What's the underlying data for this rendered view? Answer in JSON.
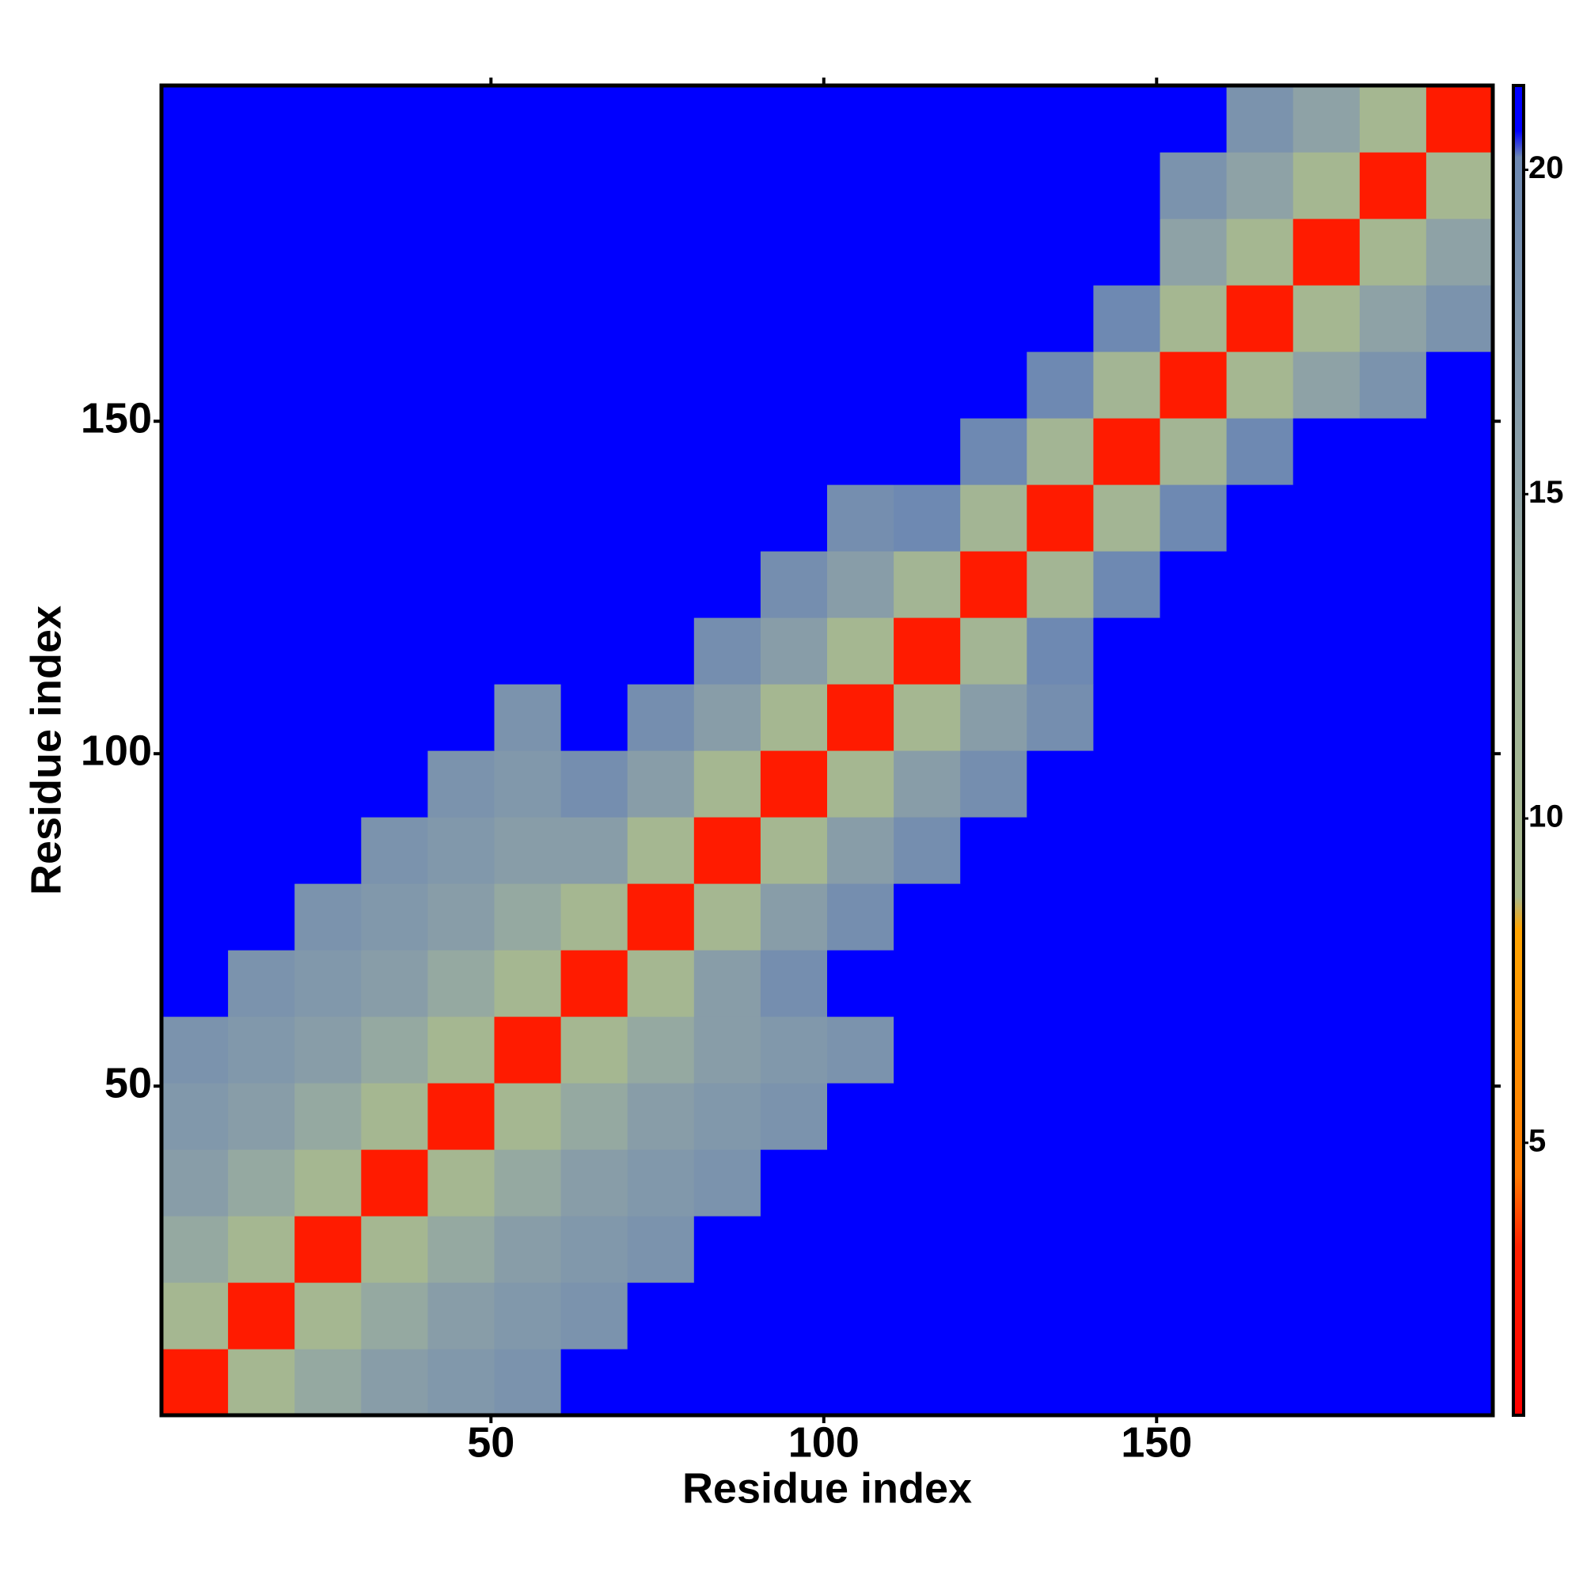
{
  "chart_data": {
    "type": "heatmap",
    "x_label": "Residue index",
    "y_label": "Residue index",
    "bins": [
      0.5,
      10.5,
      20.5,
      30.5,
      40.5,
      50.5,
      60.5,
      70.5,
      80.5,
      90.5,
      100.5,
      110.5,
      120.5,
      130.5,
      140.5,
      150.5,
      160.5,
      170.5,
      180.5,
      190.5,
      200.5
    ],
    "xlim": [
      0.5,
      200.5
    ],
    "ylim": [
      0.5,
      200.5
    ],
    "xticks": [
      50,
      100,
      150
    ],
    "yticks": [
      50,
      100,
      150
    ],
    "z": [
      [
        3,
        10,
        14,
        16,
        17,
        18,
        21,
        21,
        21,
        21,
        21,
        21,
        21,
        21,
        21,
        21,
        21,
        21,
        21,
        21
      ],
      [
        10,
        3,
        10,
        14,
        16,
        17,
        18,
        21,
        21,
        21,
        21,
        21,
        21,
        21,
        21,
        21,
        21,
        21,
        21,
        21
      ],
      [
        14,
        10,
        3,
        10,
        14,
        16,
        17,
        18,
        21,
        21,
        21,
        21,
        21,
        21,
        21,
        21,
        21,
        21,
        21,
        21
      ],
      [
        16,
        14,
        10,
        3,
        10,
        14,
        16,
        17,
        18,
        21,
        21,
        21,
        21,
        21,
        21,
        21,
        21,
        21,
        21,
        21
      ],
      [
        17,
        16,
        14,
        10,
        3,
        10,
        14,
        16,
        17,
        18,
        21,
        21,
        21,
        21,
        21,
        21,
        21,
        21,
        21,
        21
      ],
      [
        18,
        17,
        16,
        14,
        10,
        3,
        10,
        14,
        16,
        17,
        18,
        21,
        21,
        21,
        21,
        21,
        21,
        21,
        21,
        21
      ],
      [
        21,
        18,
        17,
        16,
        14,
        10,
        3,
        10,
        16,
        19,
        21,
        21,
        21,
        21,
        21,
        21,
        21,
        21,
        21,
        21
      ],
      [
        21,
        21,
        18,
        17,
        16,
        14,
        10,
        3,
        10,
        16,
        19,
        21,
        21,
        21,
        21,
        21,
        21,
        21,
        21,
        21
      ],
      [
        21,
        21,
        21,
        18,
        17,
        16,
        16,
        10,
        3,
        10,
        16,
        19,
        21,
        21,
        21,
        21,
        21,
        21,
        21,
        21
      ],
      [
        21,
        21,
        21,
        21,
        18,
        17,
        19,
        16,
        10,
        3,
        10,
        16,
        19,
        21,
        21,
        21,
        21,
        21,
        21,
        21
      ],
      [
        21,
        21,
        21,
        21,
        21,
        18,
        21,
        19,
        16,
        10,
        3,
        10,
        16,
        19,
        21,
        21,
        21,
        21,
        21,
        21
      ],
      [
        21,
        21,
        21,
        21,
        21,
        21,
        21,
        21,
        19,
        16,
        10,
        3,
        11,
        20,
        21,
        21,
        21,
        21,
        21,
        21
      ],
      [
        21,
        21,
        21,
        21,
        21,
        21,
        21,
        21,
        21,
        19,
        16,
        11,
        3,
        11,
        20,
        21,
        21,
        21,
        21,
        21
      ],
      [
        21,
        21,
        21,
        21,
        21,
        21,
        21,
        21,
        21,
        21,
        19,
        20,
        11,
        3,
        11,
        20,
        21,
        21,
        21,
        21
      ],
      [
        21,
        21,
        21,
        21,
        21,
        21,
        21,
        21,
        21,
        21,
        21,
        21,
        20,
        11,
        3,
        11,
        20,
        21,
        21,
        21
      ],
      [
        21,
        21,
        21,
        21,
        21,
        21,
        21,
        21,
        21,
        21,
        21,
        21,
        21,
        20,
        11,
        3,
        10,
        15,
        18,
        21
      ],
      [
        21,
        21,
        21,
        21,
        21,
        21,
        21,
        21,
        21,
        21,
        21,
        21,
        21,
        21,
        20,
        10,
        3,
        10,
        15,
        18
      ],
      [
        21,
        21,
        21,
        21,
        21,
        21,
        21,
        21,
        21,
        21,
        21,
        21,
        21,
        21,
        21,
        15,
        10,
        3,
        10,
        15
      ],
      [
        21,
        21,
        21,
        21,
        21,
        21,
        21,
        21,
        21,
        21,
        21,
        21,
        21,
        21,
        21,
        18,
        15,
        10,
        3,
        10
      ],
      [
        21,
        21,
        21,
        21,
        21,
        21,
        21,
        21,
        21,
        21,
        21,
        21,
        21,
        21,
        21,
        21,
        18,
        15,
        10,
        3
      ]
    ],
    "colorbar": {
      "lim": [
        0.8,
        21.3
      ],
      "ticks": [
        5,
        10,
        15,
        20
      ],
      "stops": [
        {
          "value": 0.8,
          "color": "#ff0000"
        },
        {
          "value": 3.4,
          "color": "#ff2000"
        },
        {
          "value": 4.5,
          "color": "#ff7a00"
        },
        {
          "value": 8.3,
          "color": "#ffa500"
        },
        {
          "value": 8.8,
          "color": "#a8b98c"
        },
        {
          "value": 12.5,
          "color": "#9fb39a"
        },
        {
          "value": 15,
          "color": "#8ea2a6"
        },
        {
          "value": 20.2,
          "color": "#6d88b2"
        },
        {
          "value": 20.6,
          "color": "#0000ff"
        },
        {
          "value": 21.3,
          "color": "#0000ff"
        }
      ]
    }
  }
}
